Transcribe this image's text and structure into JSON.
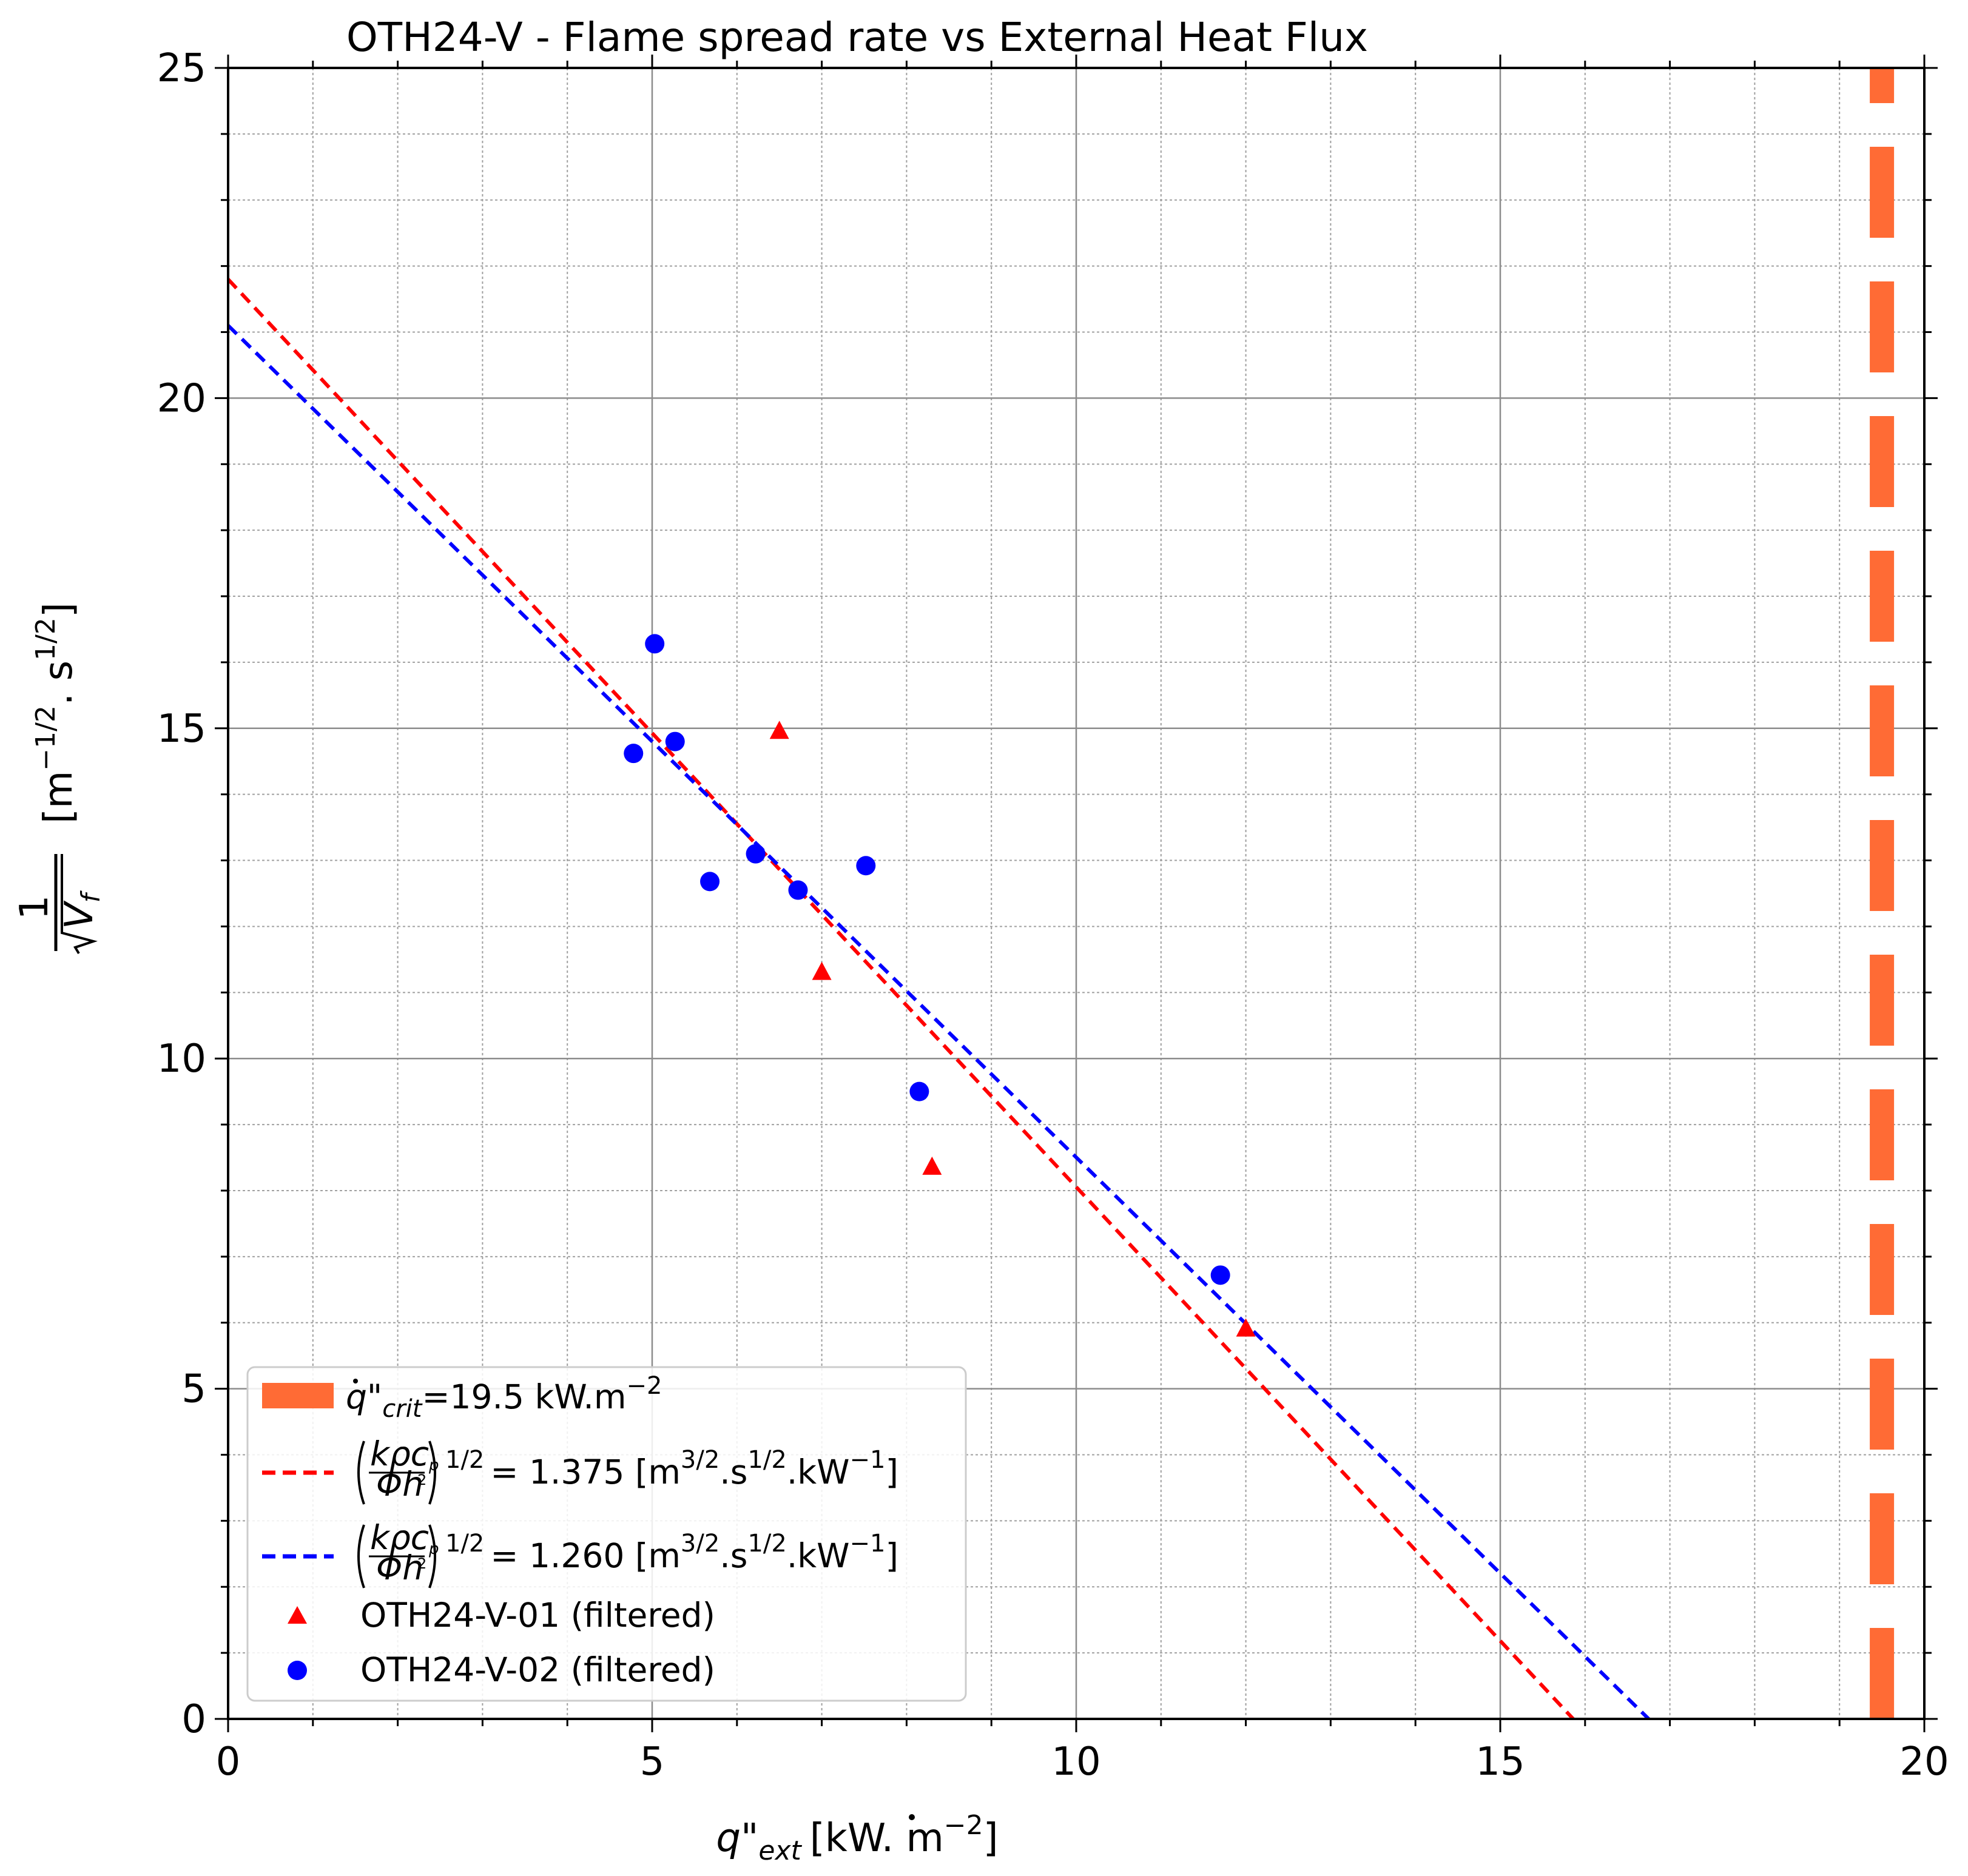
{
  "chart_data": {
    "type": "scatter",
    "title": "OTH24-V - Flame spread rate vs External Heat Flux",
    "xlabel": "q̇\"ext [kW.m⁻²]",
    "ylabel": "1/√Vf  [m^(-1/2).s^(1/2)]",
    "xlim": [
      0,
      20
    ],
    "ylim": [
      0,
      25
    ],
    "xticks": [
      0,
      5,
      10,
      15,
      20
    ],
    "yticks": [
      0,
      5,
      10,
      15,
      20,
      25
    ],
    "grid": {
      "major": true,
      "minor": true
    },
    "legend_position": "bottom-left",
    "critical_flux": {
      "value": 19.5,
      "label": "q̇\"crit=19.5 kW.m⁻²",
      "color": "#ff6b35"
    },
    "fits": [
      {
        "name": "(kρcp/Φh²)^1/2 = 1.375 [m^3/2.s^1/2.kW^-1]",
        "label_value": "= 1.375 [m",
        "color": "#ff0000",
        "x": [
          0,
          15.86
        ],
        "y": [
          21.8,
          0
        ]
      },
      {
        "name": "(kρcp/Φh²)^1/2 = 1.260 [m^3/2.s^1/2.kW^-1]",
        "label_value": "= 1.260 [m",
        "color": "#0000ff",
        "x": [
          0,
          16.75
        ],
        "y": [
          21.1,
          0
        ]
      }
    ],
    "series": [
      {
        "name": "OTH24-V-01 (filtered)",
        "marker": "triangle",
        "color": "#ff0000",
        "x": [
          6.5,
          7.0,
          8.3,
          12.0
        ],
        "y": [
          14.95,
          11.3,
          8.35,
          5.9
        ]
      },
      {
        "name": "OTH24-V-02 (filtered)",
        "marker": "circle",
        "color": "#0000ff",
        "x": [
          4.78,
          5.03,
          5.27,
          5.68,
          6.22,
          6.72,
          7.52,
          8.15,
          11.7
        ],
        "y": [
          14.62,
          16.28,
          14.8,
          12.68,
          13.1,
          12.55,
          12.92,
          9.5,
          6.72
        ]
      }
    ],
    "legend_text": {
      "crit": "=19.5 kW.m",
      "frac_num": "kρc",
      "frac_den": "Φh",
      "fit_unit_tail": ".s",
      "fit_unit_end": ".kW",
      "sup_half": "1/2",
      "sup_32": "3/2",
      "sup_neg1": "−1",
      "sup_neg2": "−2",
      "sub_crit": "crit",
      "sub_ext": "ext",
      "sub_p": "p",
      "sub_f": "f",
      "ylabel_num": "1",
      "ylabel_v": "V",
      "ylabel_unit_open": "[m",
      "ylabel_unit_mid": ". s",
      "ylabel_unit_close": "]",
      "ylabel_neg_half": "−1/2",
      "xlabel_q": "q\"",
      "xlabel_unit": "[kW. m",
      "xlabel_close": "]"
    }
  }
}
